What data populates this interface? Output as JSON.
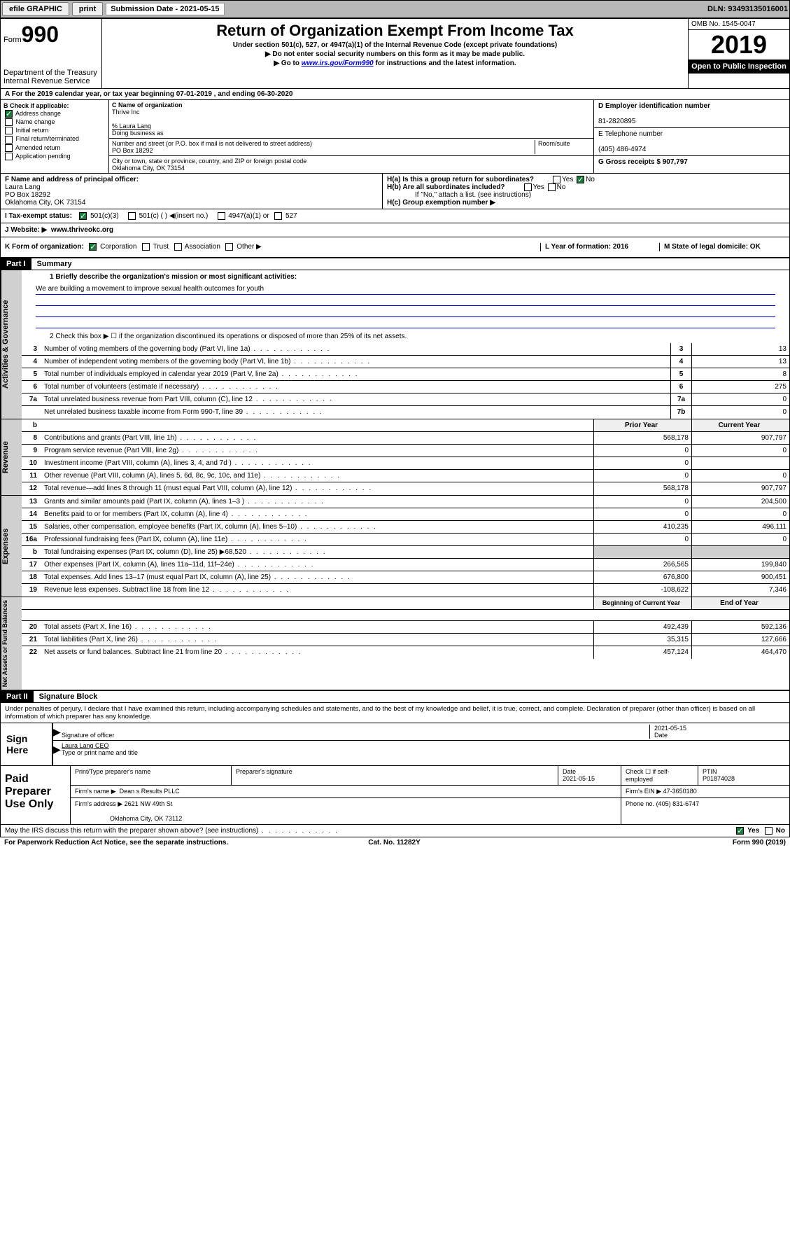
{
  "topbar": {
    "efile": "efile GRAPHIC",
    "print": "print",
    "sub_label": "Submission Date - 2021-05-15",
    "dln": "DLN: 93493135016001"
  },
  "header": {
    "form_prefix": "Form",
    "form_num": "990",
    "dept": "Department of the Treasury\nInternal Revenue Service",
    "title": "Return of Organization Exempt From Income Tax",
    "subtitle": "Under section 501(c), 527, or 4947(a)(1) of the Internal Revenue Code (except private foundations)",
    "note1": "▶ Do not enter social security numbers on this form as it may be made public.",
    "note2_pre": "▶ Go to ",
    "note2_link": "www.irs.gov/Form990",
    "note2_post": " for instructions and the latest information.",
    "omb": "OMB No. 1545-0047",
    "year": "2019",
    "inspect": "Open to Public Inspection"
  },
  "line_a": "A For the 2019 calendar year, or tax year beginning 07-01-2019    , and ending 06-30-2020",
  "col_b": {
    "label": "B Check if applicable:",
    "opts": [
      "Address change",
      "Name change",
      "Initial return",
      "Final return/terminated",
      "Amended return",
      "Application pending"
    ]
  },
  "col_c": {
    "name_lbl": "C Name of organization",
    "name": "Thrive Inc",
    "care": "% Laura Lang",
    "dba_lbl": "Doing business as",
    "addr_lbl": "Number and street (or P.O. box if mail is not delivered to street address)",
    "room_lbl": "Room/suite",
    "addr": "PO Box 18292",
    "city_lbl": "City or town, state or province, country, and ZIP or foreign postal code",
    "city": "Oklahoma City, OK  73154"
  },
  "col_d": {
    "ein_lbl": "D Employer identification number",
    "ein": "81-2820895",
    "tel_lbl": "E Telephone number",
    "tel": "(405) 486-4974",
    "gross_lbl": "G Gross receipts $ 907,797"
  },
  "officer": {
    "f_lbl": "F  Name and address of principal officer:",
    "name": "Laura Lang",
    "addr1": "PO Box 18292",
    "addr2": "Oklahoma City, OK  73154",
    "ha": "H(a)  Is this a group return for subordinates?",
    "hb": "H(b)  Are all subordinates included?",
    "hb_note": "If \"No,\" attach a list. (see instructions)",
    "hc": "H(c)  Group exemption number ▶",
    "yes": "Yes",
    "no": "No"
  },
  "status": {
    "i_lbl": "I   Tax-exempt status:",
    "opt1": "501(c)(3)",
    "opt2": "501(c) (  ) ◀(insert no.)",
    "opt3": "4947(a)(1) or",
    "opt4": "527"
  },
  "website": {
    "j_lbl": "J   Website: ▶",
    "url": "www.thriveokc.org"
  },
  "k_row": {
    "k_lbl": "K Form of organization:",
    "opts": [
      "Corporation",
      "Trust",
      "Association",
      "Other ▶"
    ],
    "l_lbl": "L Year of formation: 2016",
    "m_lbl": "M State of legal domicile: OK"
  },
  "part1": {
    "hdr": "Part I",
    "title": "Summary"
  },
  "summary": {
    "l1": "1  Briefly describe the organization's mission or most significant activities:",
    "mission": "We are building a movement to improve sexual health outcomes for youth",
    "l2": "2   Check this box ▶ ☐  if the organization discontinued its operations or disposed of more than 25% of its net assets.",
    "lines_single": [
      {
        "n": "3",
        "t": "Number of voting members of the governing body (Part VI, line 1a)",
        "b": "3",
        "v": "13"
      },
      {
        "n": "4",
        "t": "Number of independent voting members of the governing body (Part VI, line 1b)",
        "b": "4",
        "v": "13"
      },
      {
        "n": "5",
        "t": "Total number of individuals employed in calendar year 2019 (Part V, line 2a)",
        "b": "5",
        "v": "8"
      },
      {
        "n": "6",
        "t": "Total number of volunteers (estimate if necessary)",
        "b": "6",
        "v": "275"
      },
      {
        "n": "7a",
        "t": "Total unrelated business revenue from Part VIII, column (C), line 12",
        "b": "7a",
        "v": "0"
      },
      {
        "n": "",
        "t": "Net unrelated business taxable income from Form 990-T, line 39",
        "b": "7b",
        "v": "0"
      }
    ],
    "hdr_prior": "Prior Year",
    "hdr_curr": "Current Year",
    "revenue": [
      {
        "n": "8",
        "t": "Contributions and grants (Part VIII, line 1h)",
        "p": "568,178",
        "c": "907,797"
      },
      {
        "n": "9",
        "t": "Program service revenue (Part VIII, line 2g)",
        "p": "0",
        "c": "0"
      },
      {
        "n": "10",
        "t": "Investment income (Part VIII, column (A), lines 3, 4, and 7d )",
        "p": "0",
        "c": ""
      },
      {
        "n": "11",
        "t": "Other revenue (Part VIII, column (A), lines 5, 6d, 8c, 9c, 10c, and 11e)",
        "p": "0",
        "c": "0"
      },
      {
        "n": "12",
        "t": "Total revenue—add lines 8 through 11 (must equal Part VIII, column (A), line 12)",
        "p": "568,178",
        "c": "907,797"
      }
    ],
    "expenses": [
      {
        "n": "13",
        "t": "Grants and similar amounts paid (Part IX, column (A), lines 1–3 )",
        "p": "0",
        "c": "204,500"
      },
      {
        "n": "14",
        "t": "Benefits paid to or for members (Part IX, column (A), line 4)",
        "p": "0",
        "c": "0"
      },
      {
        "n": "15",
        "t": "Salaries, other compensation, employee benefits (Part IX, column (A), lines 5–10)",
        "p": "410,235",
        "c": "496,111"
      },
      {
        "n": "16a",
        "t": "Professional fundraising fees (Part IX, column (A), line 11e)",
        "p": "0",
        "c": "0"
      },
      {
        "n": "b",
        "t": "Total fundraising expenses (Part IX, column (D), line 25) ▶68,520",
        "p": "",
        "c": "",
        "grey": true
      },
      {
        "n": "17",
        "t": "Other expenses (Part IX, column (A), lines 11a–11d, 11f–24e)",
        "p": "266,565",
        "c": "199,840"
      },
      {
        "n": "18",
        "t": "Total expenses. Add lines 13–17 (must equal Part IX, column (A), line 25)",
        "p": "676,800",
        "c": "900,451"
      },
      {
        "n": "19",
        "t": "Revenue less expenses. Subtract line 18 from line 12",
        "p": "-108,622",
        "c": "7,346"
      }
    ],
    "hdr_beg": "Beginning of Current Year",
    "hdr_end": "End of Year",
    "netassets": [
      {
        "n": "20",
        "t": "Total assets (Part X, line 16)",
        "p": "492,439",
        "c": "592,136"
      },
      {
        "n": "21",
        "t": "Total liabilities (Part X, line 26)",
        "p": "35,315",
        "c": "127,666"
      },
      {
        "n": "22",
        "t": "Net assets or fund balances. Subtract line 21 from line 20",
        "p": "457,124",
        "c": "464,470"
      }
    ]
  },
  "side_labels": {
    "gov": "Activities & Governance",
    "rev": "Revenue",
    "exp": "Expenses",
    "net": "Net Assets or Fund Balances"
  },
  "part2": {
    "hdr": "Part II",
    "title": "Signature Block"
  },
  "sig": {
    "text": "Under penalties of perjury, I declare that I have examined this return, including accompanying schedules and statements, and to the best of my knowledge and belief, it is true, correct, and complete. Declaration of preparer (other than officer) is based on all information of which preparer has any knowledge.",
    "sign_here": "Sign Here",
    "date": "2021-05-15",
    "sig_lbl": "Signature of officer",
    "date_lbl": "Date",
    "name": "Laura Lang  CEO",
    "name_lbl": "Type or print name and title",
    "paid": "Paid Preparer Use Only",
    "col1": "Print/Type preparer's name",
    "col2": "Preparer's signature",
    "col3_lbl": "Date",
    "col3": "2021-05-15",
    "col4": "Check ☐ if self-employed",
    "col5_lbl": "PTIN",
    "col5": "P01874028",
    "firm_lbl": "Firm's name    ▶",
    "firm": "Dean s Results PLLC",
    "ein_lbl": "Firm's EIN ▶",
    "ein": "47-3650180",
    "addr_lbl": "Firm's address ▶",
    "addr": "2621 NW 49th St",
    "addr2": "Oklahoma City, OK  73112",
    "phone_lbl": "Phone no.",
    "phone": "(405) 831-6747"
  },
  "bottom": {
    "q": "May the IRS discuss this return with the preparer shown above? (see instructions)",
    "yes": "Yes",
    "no": "No"
  },
  "footer": {
    "l": "For Paperwork Reduction Act Notice, see the separate instructions.",
    "m": "Cat. No. 11282Y",
    "r": "Form 990 (2019)"
  }
}
